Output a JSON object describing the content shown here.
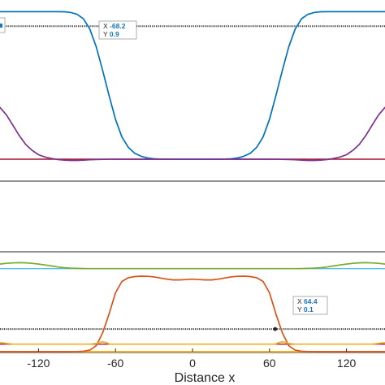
{
  "chart_data": [
    {
      "panel": "top",
      "type": "line",
      "xlim": [
        -150,
        150
      ],
      "ylim": [
        -0.08,
        1.02
      ],
      "xlabel": "",
      "ylabel": "",
      "series": [
        {
          "color": "#0072BD",
          "x": [
            -150,
            -145,
            -140,
            -135,
            -130,
            -125,
            -120,
            -115,
            -110,
            -105,
            -100,
            -95,
            -90,
            -85,
            -80,
            -75,
            -70,
            -65,
            -60,
            -55,
            -50,
            -45,
            -40,
            -35,
            -30,
            -25,
            -20,
            -15,
            -10,
            -5,
            0,
            5,
            10,
            15,
            20,
            25,
            30,
            35,
            40,
            45,
            50,
            55,
            60,
            65,
            70,
            75,
            80,
            85,
            90,
            95,
            100,
            105,
            110,
            115,
            120,
            125,
            130,
            135,
            140,
            145,
            150
          ],
          "y": [
            0.998,
            0.998,
            0.998,
            0.998,
            0.998,
            0.998,
            0.998,
            0.998,
            0.998,
            0.998,
            0.997,
            0.993,
            0.98,
            0.95,
            0.88,
            0.76,
            0.6,
            0.43,
            0.27,
            0.15,
            0.08,
            0.04,
            0.02,
            0.008,
            0.003,
            0.001,
            0,
            0,
            0,
            0,
            0,
            0,
            0,
            0,
            0,
            0.001,
            0.003,
            0.008,
            0.02,
            0.04,
            0.08,
            0.15,
            0.27,
            0.43,
            0.6,
            0.76,
            0.88,
            0.95,
            0.98,
            0.993,
            0.997,
            0.998,
            0.998,
            0.998,
            0.998,
            0.998,
            0.998,
            0.998,
            0.998,
            0.998,
            0.998
          ]
        },
        {
          "color": "#7E2F8E",
          "x": [
            -150,
            -145,
            -140,
            -135,
            -130,
            -125,
            -120,
            -115,
            -110,
            -105,
            -100,
            -95,
            -90,
            -85,
            -80,
            -75,
            -70,
            -65,
            -60,
            -55,
            -50,
            -40,
            -20,
            0,
            20,
            40,
            50,
            55,
            60,
            65,
            70,
            75,
            80,
            85,
            90,
            95,
            100,
            105,
            110,
            115,
            120,
            125,
            130,
            135,
            140,
            145,
            150
          ],
          "y": [
            0.35,
            0.3,
            0.23,
            0.16,
            0.1,
            0.06,
            0.03,
            0.015,
            0.005,
            -0.002,
            -0.006,
            -0.008,
            -0.008,
            -0.006,
            -0.004,
            -0.002,
            -0.001,
            0,
            0,
            0,
            0,
            0,
            0,
            0,
            0,
            0,
            0,
            0,
            0,
            0,
            -0.001,
            -0.002,
            -0.004,
            -0.006,
            -0.008,
            -0.008,
            -0.006,
            -0.002,
            0.005,
            0.015,
            0.03,
            0.06,
            0.1,
            0.16,
            0.23,
            0.3,
            0.35
          ]
        }
      ],
      "reference_lines": [
        {
          "y": 0.9,
          "color": "#3a3a3a",
          "style": "dotted"
        },
        {
          "y": 0.0,
          "color": "#A2142F",
          "style": "solid"
        }
      ],
      "annotations": [
        {
          "x": -68.2,
          "y": 0.9,
          "label_x": "X",
          "value_x": "-68.2",
          "label_y": "Y",
          "value_y": "0.9"
        }
      ]
    },
    {
      "panel": "bottom",
      "type": "line",
      "xlim": [
        -150,
        150
      ],
      "ylim": [
        -0.03,
        1.2
      ],
      "xlabel": "Distance x",
      "ylabel": "",
      "xticks": [
        -120,
        -60,
        0,
        60,
        120
      ],
      "series": [
        {
          "color": "#D95319",
          "x": [
            -150,
            -140,
            -130,
            -120,
            -110,
            -100,
            -90,
            -85,
            -80,
            -75,
            -70,
            -65,
            -60,
            -55,
            -50,
            -45,
            -40,
            -35,
            -30,
            -25,
            -20,
            -15,
            -10,
            -5,
            0,
            5,
            10,
            15,
            20,
            25,
            30,
            35,
            40,
            45,
            50,
            55,
            60,
            65,
            70,
            75,
            80,
            85,
            90,
            100,
            110,
            120,
            130,
            140,
            150
          ],
          "y": [
            0,
            0,
            0,
            0,
            0,
            0,
            0.002,
            0.005,
            0.02,
            0.08,
            0.25,
            0.5,
            0.78,
            0.93,
            0.98,
            0.995,
            1.0,
            0.998,
            0.99,
            0.975,
            0.96,
            0.95,
            0.95,
            0.955,
            0.96,
            0.955,
            0.95,
            0.95,
            0.96,
            0.975,
            0.99,
            0.998,
            1.0,
            0.995,
            0.98,
            0.93,
            0.78,
            0.5,
            0.25,
            0.08,
            0.02,
            0.005,
            0.002,
            0,
            0,
            0,
            0,
            0,
            0
          ]
        },
        {
          "color": "#77AC30",
          "x": [
            -150,
            -145,
            -140,
            -135,
            -130,
            -125,
            -120,
            -115,
            -110,
            -105,
            -100,
            -95,
            -90,
            -85,
            -80,
            -75,
            -70,
            -60,
            0,
            60,
            70,
            75,
            80,
            85,
            90,
            95,
            100,
            105,
            110,
            115,
            120,
            125,
            130,
            135,
            140,
            145,
            150
          ],
          "y": [
            1.16,
            1.17,
            1.175,
            1.178,
            1.176,
            1.17,
            1.16,
            1.148,
            1.135,
            1.122,
            1.112,
            1.106,
            1.103,
            1.101,
            1.1,
            1.1,
            1.1,
            1.1,
            1.1,
            1.1,
            1.1,
            1.1,
            1.1,
            1.101,
            1.103,
            1.106,
            1.112,
            1.122,
            1.135,
            1.148,
            1.16,
            1.17,
            1.176,
            1.178,
            1.175,
            1.17,
            1.16
          ]
        },
        {
          "color": "#EDB120",
          "x": [
            -150,
            -140,
            -130,
            -120,
            -110,
            -100,
            -90,
            -80,
            -75,
            -72,
            -70,
            -68,
            -66,
            -65,
            -64,
            -62,
            -60,
            0,
            60,
            62,
            64,
            65,
            66,
            68,
            70,
            72,
            75,
            80,
            90,
            100,
            110,
            120,
            130,
            140,
            150
          ],
          "y": [
            0.12,
            0.1,
            0.1,
            0.1,
            0.1,
            0.1,
            0.1,
            0.1,
            0.11,
            0.125,
            0.13,
            0.125,
            0.112,
            0.104,
            0.1,
            0.1,
            0.1,
            0.1,
            0.1,
            0.1,
            0.1,
            0.104,
            0.112,
            0.125,
            0.13,
            0.125,
            0.11,
            0.1,
            0.1,
            0.1,
            0.1,
            0.1,
            0.1,
            0.1,
            0.12
          ]
        }
      ],
      "reference_lines": [
        {
          "y": 1.1,
          "color": "#4DBEEE",
          "style": "solid"
        },
        {
          "y": 0.3,
          "color": "#3a3a3a",
          "style": "dotted"
        },
        {
          "y": 0.1,
          "color": "#A2142F",
          "style": "solid"
        }
      ],
      "baseline": {
        "y": 0.0,
        "color": "#EDB120"
      },
      "annotations": [
        {
          "x": 64.4,
          "y": 0.3,
          "label_x": "X",
          "value_x": "64.4",
          "label_y": "Y",
          "value_y": "0.1"
        }
      ]
    }
  ]
}
